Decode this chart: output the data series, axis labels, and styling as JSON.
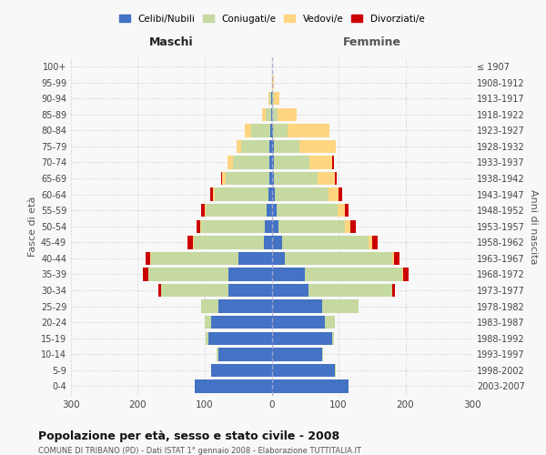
{
  "age_groups": [
    "0-4",
    "5-9",
    "10-14",
    "15-19",
    "20-24",
    "25-29",
    "30-34",
    "35-39",
    "40-44",
    "45-49",
    "50-54",
    "55-59",
    "60-64",
    "65-69",
    "70-74",
    "75-79",
    "80-84",
    "85-89",
    "90-94",
    "95-99",
    "100+"
  ],
  "birth_years": [
    "2003-2007",
    "1998-2002",
    "1993-1997",
    "1988-1992",
    "1983-1987",
    "1978-1982",
    "1973-1977",
    "1968-1972",
    "1963-1967",
    "1958-1962",
    "1953-1957",
    "1948-1952",
    "1943-1947",
    "1938-1942",
    "1933-1937",
    "1928-1932",
    "1923-1927",
    "1918-1922",
    "1913-1917",
    "1908-1912",
    "≤ 1907"
  ],
  "males_celibi": [
    115,
    90,
    80,
    95,
    90,
    80,
    65,
    65,
    50,
    12,
    10,
    8,
    5,
    4,
    3,
    3,
    2,
    1,
    1,
    0,
    0
  ],
  "males_coniugati": [
    0,
    1,
    2,
    3,
    10,
    25,
    100,
    120,
    130,
    105,
    95,
    90,
    80,
    65,
    55,
    42,
    28,
    8,
    3,
    0,
    0
  ],
  "males_vedovi": [
    0,
    0,
    0,
    0,
    0,
    0,
    0,
    0,
    1,
    1,
    2,
    2,
    3,
    5,
    8,
    8,
    10,
    5,
    1,
    0,
    0
  ],
  "males_divorziati": [
    0,
    0,
    0,
    0,
    0,
    0,
    5,
    8,
    8,
    8,
    5,
    5,
    4,
    2,
    0,
    0,
    0,
    0,
    0,
    0,
    0
  ],
  "females_nubili": [
    115,
    95,
    75,
    90,
    80,
    75,
    55,
    50,
    20,
    15,
    10,
    8,
    5,
    4,
    4,
    3,
    2,
    1,
    1,
    0,
    0
  ],
  "females_coniugate": [
    0,
    1,
    2,
    3,
    15,
    55,
    125,
    145,
    160,
    130,
    100,
    90,
    80,
    65,
    52,
    38,
    22,
    8,
    3,
    1,
    0
  ],
  "females_vedove": [
    0,
    0,
    0,
    0,
    0,
    0,
    0,
    2,
    3,
    5,
    8,
    12,
    15,
    25,
    35,
    55,
    62,
    28,
    8,
    2,
    0
  ],
  "females_divorziate": [
    0,
    0,
    0,
    0,
    0,
    0,
    5,
    8,
    8,
    8,
    8,
    5,
    5,
    3,
    2,
    0,
    0,
    0,
    0,
    0,
    0
  ],
  "color_celibi": "#4472C4",
  "color_coniugati": "#C5D9A0",
  "color_vedovi": "#FFD580",
  "color_divorziati": "#CC0000",
  "xlim": 300,
  "title": "Popolazione per età, sesso e stato civile - 2008",
  "subtitle": "COMUNE DI TRIBANO (PD) - Dati ISTAT 1° gennaio 2008 - Elaborazione TUTTITALIA.IT",
  "label_maschi": "Maschi",
  "label_femmine": "Femmine",
  "ylabel_left": "Fasce di età",
  "ylabel_right": "Anni di nascita",
  "legend_labels": [
    "Celibi/Nubili",
    "Coniugati/e",
    "Vedovi/e",
    "Divorziati/e"
  ],
  "bg_color": "#f8f8f8",
  "grid_color": "#cccccc"
}
